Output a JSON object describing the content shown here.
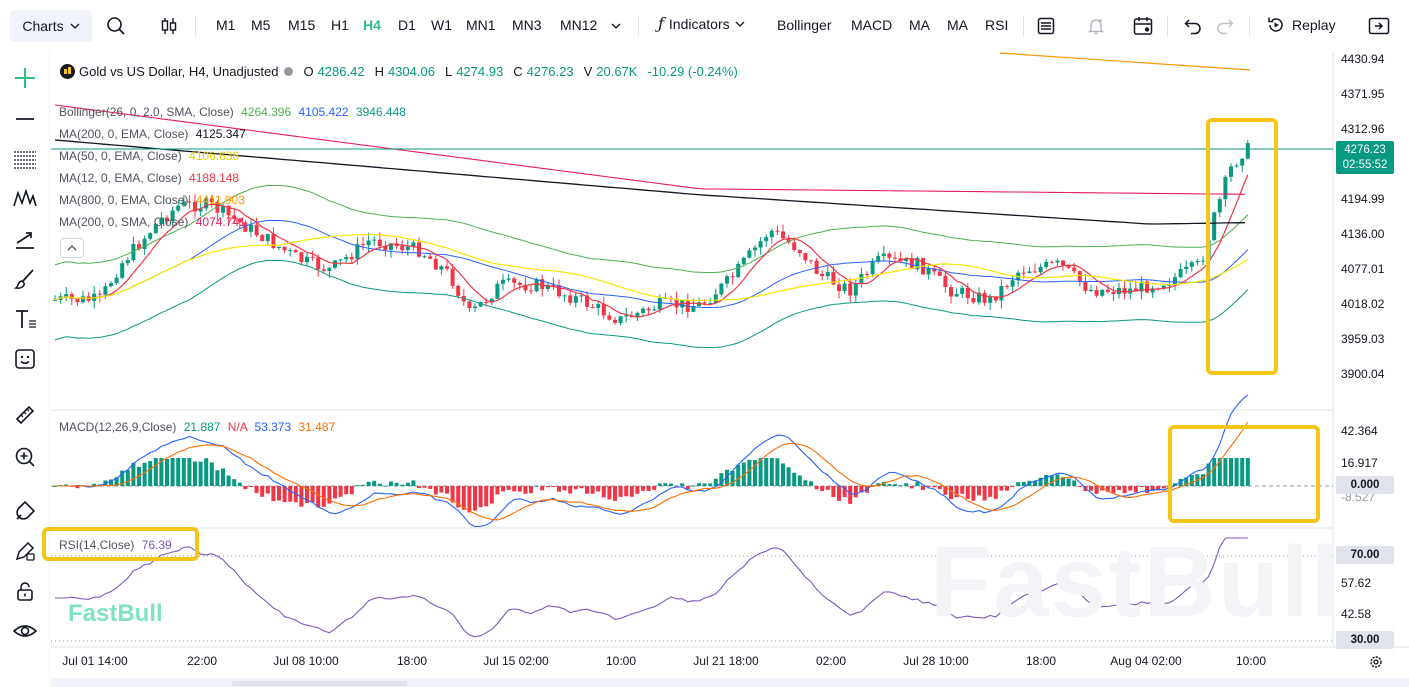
{
  "toolbar": {
    "charts_label": "Charts",
    "timeframes": [
      "M1",
      "M5",
      "M15",
      "H1",
      "H4",
      "D1",
      "W1",
      "MN1",
      "MN3",
      "MN12"
    ],
    "active_timeframe": "H4",
    "indicators_label": "Indicators",
    "quick_indicators": [
      "Bollinger",
      "MACD",
      "MA",
      "MA",
      "RSI"
    ],
    "replay_label": "Replay"
  },
  "symbol_legend": {
    "title": "Gold vs US Dollar, H4, Unadjusted",
    "o_label": "O",
    "o_value": "4286.42",
    "h_label": "H",
    "h_value": "4304.06",
    "l_label": "L",
    "l_value": "4274.93",
    "c_label": "C",
    "c_value": "4276.23",
    "v_label": "V",
    "v_value": "20.67K",
    "change": "-10.29 (-0.24%)"
  },
  "indicator_legends": [
    {
      "name": "Bollinger(26, 0, 2.0, SMA, Close)",
      "values": [
        "4264.396",
        "4105.422",
        "3946.448"
      ],
      "colors": [
        "#4caf50",
        "#2962ff",
        "#089981"
      ]
    },
    {
      "name": "MA(200, 0, EMA, Close)",
      "values": [
        "4125.347"
      ],
      "colors": [
        "#131722"
      ]
    },
    {
      "name": "MA(50, 0, EMA, Close)",
      "values": [
        "4106.636"
      ],
      "colors": [
        "#f7e600"
      ]
    },
    {
      "name": "MA(12, 0, EMA, Close)",
      "values": [
        "4188.148"
      ],
      "colors": [
        "#f23645"
      ]
    },
    {
      "name": "MA(800, 0, EMA, Close)",
      "values": [
        "4411.903"
      ],
      "colors": [
        "#ff9800"
      ]
    },
    {
      "name": "MA(200, 0, SMA, Close)",
      "values": [
        "4074.741"
      ],
      "colors": [
        "#e91e63"
      ]
    }
  ],
  "macd_legend": {
    "name": "MACD(12,26,9,Close)",
    "values": [
      "21.887",
      "N/A",
      "53.373",
      "31.487"
    ],
    "colors": [
      "#089981",
      "#f23645",
      "#2962ff",
      "#ff6d00"
    ]
  },
  "rsi_legend": {
    "name": "RSI(14,Close)",
    "value": "76.39"
  },
  "price_axis": [
    "4430.94",
    "4371.95",
    "4312.96",
    "4194.99",
    "4136.00",
    "4077.01",
    "4018.02",
    "3959.03",
    "3900.04"
  ],
  "current_price": {
    "price": "4276.23",
    "countdown": "02:55:52",
    "color": "#089981"
  },
  "macd_axis": [
    "42.364",
    "16.917",
    "0.000",
    "-8.527"
  ],
  "rsi_axis": [
    "70.00",
    "57.62",
    "42.58",
    "30.00"
  ],
  "time_axis": [
    "Jul 01 14:00",
    "22:00",
    "Jul 08 10:00",
    "18:00",
    "Jul 15 02:00",
    "10:00",
    "Jul 21 18:00",
    "02:00",
    "Jul 28 10:00",
    "18:00",
    "Aug 04 02:00",
    "10:00"
  ],
  "watermark": "FastBull",
  "colors": {
    "up": "#089981",
    "down": "#f23645",
    "highlight": "#f5c518",
    "accent": "#2ebd85"
  }
}
